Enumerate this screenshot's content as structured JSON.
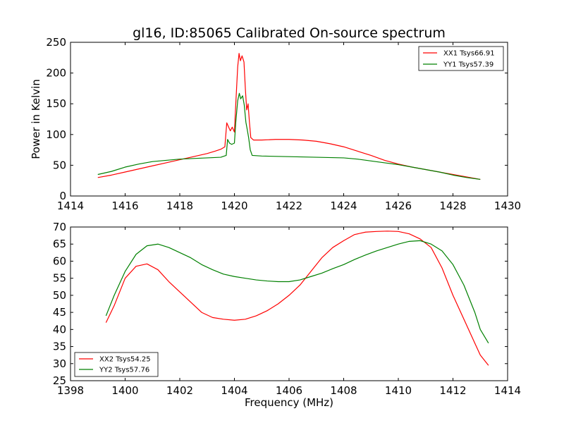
{
  "figure": {
    "title": "gl16, ID:85065 Calibrated On-source spectrum"
  },
  "chart_data": [
    {
      "type": "line",
      "title": "gl16, ID:85065 Calibrated On-source spectrum",
      "xlabel": "",
      "ylabel": "Power in Kelvin",
      "xlim": [
        1414,
        1430
      ],
      "ylim": [
        0,
        250
      ],
      "x_ticks": [
        "1414",
        "1416",
        "1418",
        "1420",
        "1422",
        "1424",
        "1426",
        "1428",
        "1430"
      ],
      "y_ticks": [
        "0",
        "50",
        "100",
        "150",
        "200",
        "250"
      ],
      "legend_position": "top-right",
      "grid": false,
      "series": [
        {
          "name": "XX1 Tsys66.91",
          "color": "#ff0000",
          "points": [
            [
              1415.0,
              30
            ],
            [
              1415.5,
              34
            ],
            [
              1416.0,
              39
            ],
            [
              1416.5,
              44
            ],
            [
              1417.0,
              49
            ],
            [
              1417.5,
              54
            ],
            [
              1418.0,
              59
            ],
            [
              1418.5,
              64
            ],
            [
              1419.0,
              69
            ],
            [
              1419.3,
              73
            ],
            [
              1419.5,
              76
            ],
            [
              1419.65,
              80
            ],
            [
              1419.72,
              119
            ],
            [
              1419.78,
              113
            ],
            [
              1419.85,
              106
            ],
            [
              1419.92,
              112
            ],
            [
              1420.0,
              104
            ],
            [
              1420.05,
              150
            ],
            [
              1420.12,
              210
            ],
            [
              1420.17,
              232
            ],
            [
              1420.22,
              220
            ],
            [
              1420.28,
              228
            ],
            [
              1420.35,
              218
            ],
            [
              1420.4,
              175
            ],
            [
              1420.45,
              140
            ],
            [
              1420.5,
              150
            ],
            [
              1420.55,
              120
            ],
            [
              1420.6,
              95
            ],
            [
              1420.7,
              91
            ],
            [
              1421.0,
              91
            ],
            [
              1421.5,
              92
            ],
            [
              1422.0,
              92
            ],
            [
              1422.5,
              91
            ],
            [
              1423.0,
              89
            ],
            [
              1423.5,
              85
            ],
            [
              1424.0,
              80
            ],
            [
              1424.5,
              73
            ],
            [
              1425.0,
              66
            ],
            [
              1425.5,
              58
            ],
            [
              1426.0,
              52
            ],
            [
              1426.5,
              47
            ],
            [
              1427.0,
              43
            ],
            [
              1427.5,
              39
            ],
            [
              1428.0,
              35
            ],
            [
              1428.5,
              31
            ],
            [
              1429.0,
              27
            ]
          ]
        },
        {
          "name": "YY1 Tsys57.39",
          "color": "#008000",
          "points": [
            [
              1415.0,
              35
            ],
            [
              1415.5,
              40
            ],
            [
              1416.0,
              47
            ],
            [
              1416.5,
              52
            ],
            [
              1417.0,
              56
            ],
            [
              1417.5,
              58
            ],
            [
              1418.0,
              60
            ],
            [
              1418.5,
              61
            ],
            [
              1419.0,
              62
            ],
            [
              1419.5,
              63
            ],
            [
              1419.7,
              66
            ],
            [
              1419.75,
              92
            ],
            [
              1419.82,
              86
            ],
            [
              1419.9,
              84
            ],
            [
              1420.0,
              86
            ],
            [
              1420.05,
              120
            ],
            [
              1420.12,
              155
            ],
            [
              1420.18,
              167
            ],
            [
              1420.23,
              158
            ],
            [
              1420.3,
              163
            ],
            [
              1420.36,
              148
            ],
            [
              1420.42,
              120
            ],
            [
              1420.47,
              108
            ],
            [
              1420.52,
              95
            ],
            [
              1420.58,
              75
            ],
            [
              1420.65,
              66
            ],
            [
              1421.0,
              65
            ],
            [
              1422.0,
              64
            ],
            [
              1423.0,
              63
            ],
            [
              1424.0,
              62
            ],
            [
              1424.5,
              60
            ],
            [
              1425.0,
              57
            ],
            [
              1425.5,
              54
            ],
            [
              1426.0,
              51
            ],
            [
              1426.5,
              47
            ],
            [
              1427.0,
              43
            ],
            [
              1427.5,
              39
            ],
            [
              1428.0,
              34
            ],
            [
              1428.5,
              30
            ],
            [
              1429.0,
              27
            ]
          ]
        }
      ]
    },
    {
      "type": "line",
      "title": "",
      "xlabel": "Frequency (MHz)",
      "ylabel": "",
      "xlim": [
        1398,
        1414
      ],
      "ylim": [
        25,
        70
      ],
      "x_ticks": [
        "1398",
        "1400",
        "1402",
        "1404",
        "1406",
        "1408",
        "1410",
        "1412",
        "1414"
      ],
      "y_ticks": [
        "25",
        "30",
        "35",
        "40",
        "45",
        "50",
        "55",
        "60",
        "65",
        "70"
      ],
      "legend_position": "bottom-left",
      "grid": false,
      "series": [
        {
          "name": "XX2 Tsys54.25",
          "color": "#ff0000",
          "points": [
            [
              1399.3,
              42
            ],
            [
              1399.6,
              47
            ],
            [
              1400.0,
              55
            ],
            [
              1400.4,
              58.5
            ],
            [
              1400.8,
              59.2
            ],
            [
              1401.2,
              57.5
            ],
            [
              1401.6,
              54
            ],
            [
              1402.0,
              51
            ],
            [
              1402.4,
              48
            ],
            [
              1402.8,
              45
            ],
            [
              1403.2,
              43.5
            ],
            [
              1403.6,
              43
            ],
            [
              1404.0,
              42.7
            ],
            [
              1404.4,
              43
            ],
            [
              1404.8,
              44
            ],
            [
              1405.2,
              45.5
            ],
            [
              1405.6,
              47.5
            ],
            [
              1406.0,
              50
            ],
            [
              1406.4,
              53
            ],
            [
              1406.8,
              57
            ],
            [
              1407.2,
              61
            ],
            [
              1407.6,
              64
            ],
            [
              1408.0,
              66
            ],
            [
              1408.4,
              67.8
            ],
            [
              1408.8,
              68.5
            ],
            [
              1409.2,
              68.7
            ],
            [
              1409.6,
              68.8
            ],
            [
              1410.0,
              68.7
            ],
            [
              1410.4,
              68
            ],
            [
              1410.8,
              66.5
            ],
            [
              1411.2,
              64
            ],
            [
              1411.6,
              58
            ],
            [
              1412.0,
              50
            ],
            [
              1412.4,
              43
            ],
            [
              1412.8,
              36
            ],
            [
              1413.0,
              32.5
            ],
            [
              1413.3,
              29.5
            ]
          ]
        },
        {
          "name": "YY2 Tsys57.76",
          "color": "#008000",
          "points": [
            [
              1399.3,
              44
            ],
            [
              1399.6,
              50
            ],
            [
              1400.0,
              57
            ],
            [
              1400.4,
              62
            ],
            [
              1400.8,
              64.5
            ],
            [
              1401.2,
              65
            ],
            [
              1401.6,
              64
            ],
            [
              1402.0,
              62.5
            ],
            [
              1402.4,
              61
            ],
            [
              1402.8,
              59
            ],
            [
              1403.2,
              57.5
            ],
            [
              1403.6,
              56.2
            ],
            [
              1404.0,
              55.5
            ],
            [
              1404.4,
              55
            ],
            [
              1404.8,
              54.5
            ],
            [
              1405.2,
              54.2
            ],
            [
              1405.6,
              54
            ],
            [
              1406.0,
              54
            ],
            [
              1406.4,
              54.5
            ],
            [
              1406.8,
              55.5
            ],
            [
              1407.2,
              56.5
            ],
            [
              1407.6,
              57.8
            ],
            [
              1408.0,
              59
            ],
            [
              1408.4,
              60.5
            ],
            [
              1408.8,
              61.8
            ],
            [
              1409.2,
              63
            ],
            [
              1409.6,
              64
            ],
            [
              1410.0,
              65
            ],
            [
              1410.4,
              65.8
            ],
            [
              1410.8,
              66
            ],
            [
              1411.2,
              65
            ],
            [
              1411.6,
              63
            ],
            [
              1412.0,
              59
            ],
            [
              1412.4,
              53
            ],
            [
              1412.8,
              45
            ],
            [
              1413.0,
              40
            ],
            [
              1413.3,
              36
            ]
          ]
        }
      ]
    }
  ]
}
